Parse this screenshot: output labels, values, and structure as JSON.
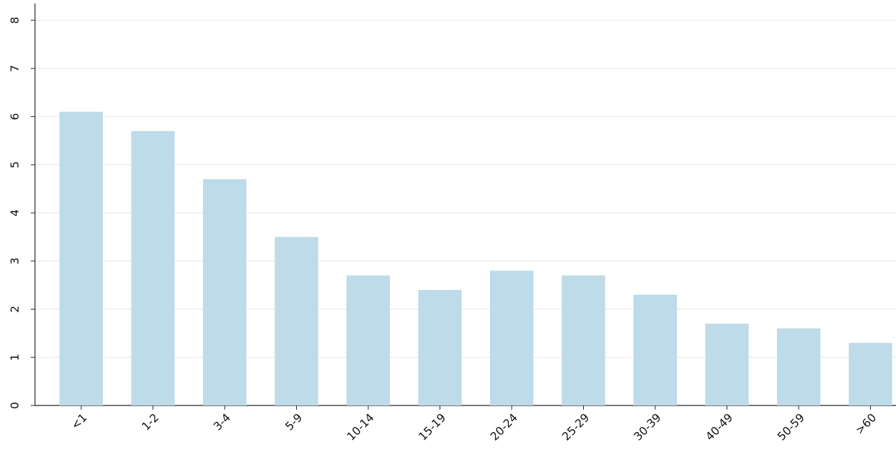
{
  "chart_data": {
    "type": "bar",
    "categories": [
      "<1",
      "1-2",
      "3-4",
      "5-9",
      "10-14",
      "15-19",
      "20-24",
      "25-29",
      "30-39",
      "40-49",
      "50-59",
      ">60"
    ],
    "values": [
      6.1,
      5.7,
      4.7,
      3.5,
      2.7,
      2.4,
      2.8,
      2.7,
      2.3,
      1.7,
      1.6,
      1.3
    ],
    "color": "#bddbe8",
    "ylim": [
      0,
      8
    ],
    "yticks": [
      0,
      1,
      2,
      3,
      4,
      5,
      6,
      7,
      8
    ],
    "grid": true
  }
}
